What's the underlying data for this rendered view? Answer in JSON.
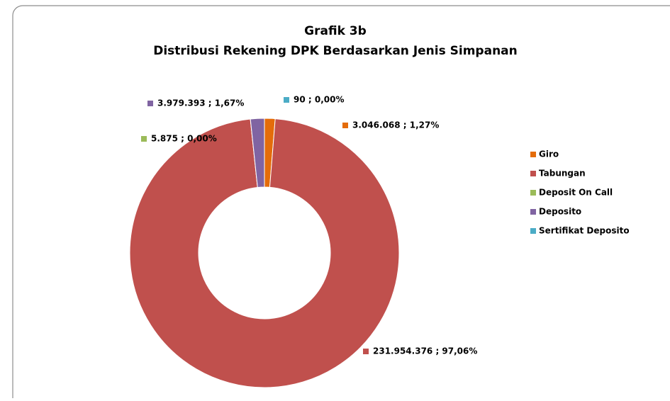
{
  "chart_data": {
    "type": "donut",
    "title": "Grafik 3b",
    "subtitle": "Distribusi Rekening DPK Berdasarkan Jenis Simpanan",
    "categories": [
      "Giro",
      "Tabungan",
      "Deposit On Call",
      "Deposito",
      "Sertifikat Deposito"
    ],
    "values": [
      3046068,
      231954376,
      5875,
      3979393,
      90
    ],
    "value_labels": [
      "3.046.068 ; 1,27%",
      "231.954.376 ; 97,06%",
      "5.875 ; 0,00%",
      "3.979.393 ; 1,67%",
      "90 ; 0,00%"
    ],
    "colors": [
      "#e46c0a",
      "#c0504d",
      "#9bbb59",
      "#8064a2",
      "#4bacc6"
    ],
    "legend": "right"
  }
}
